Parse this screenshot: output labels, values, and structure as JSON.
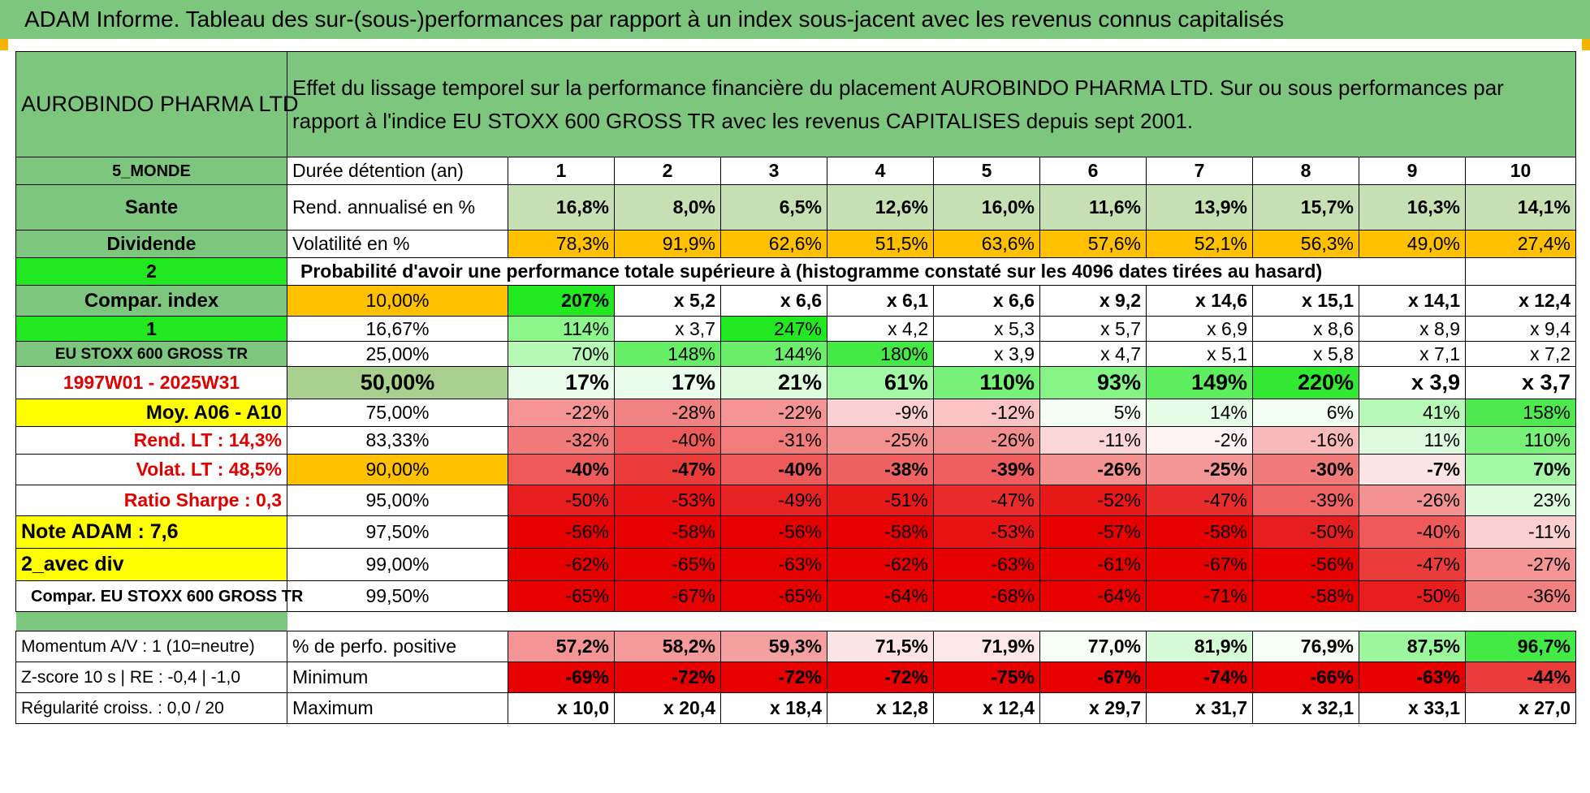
{
  "title": "ADAM Informe. Tableau des sur-(sous-)performances par rapport à un index sous-jacent avec les revenus connus capitalisés",
  "asset": "AUROBINDO PHARMA LTD",
  "description": "Effet du lissage temporel sur la performance financière du placement AUROBINDO PHARMA LTD. Sur ou sous performances par rapport à l'indice EU STOXX 600 GROSS TR avec les revenus CAPITALISES depuis sept 2001.",
  "left_labels": {
    "region": "5_MONDE",
    "sector": "Sante",
    "type": "Dividende",
    "val2": "2",
    "compar_index": "Compar. index",
    "val1": "1",
    "index_name": "EU STOXX 600 GROSS TR",
    "period": "1997W01 - 2025W31",
    "moy": "Moy. A06 - A10",
    "rend_lt": "Rend. LT :    14,3%",
    "volat_lt": "Volat. LT :    48,5%",
    "sharpe": "Ratio Sharpe :     0,3",
    "note": "Note ADAM : 7,6",
    "avec_div": "2_avec div",
    "compar_full": "Compar. EU STOXX 600 GROSS TR",
    "momentum": "Momentum A/V : 1 (10=neutre)",
    "zscore": "Z-score 10 s | RE : -0,4 | -1,0",
    "regularite": "Régularité croiss. : 0,0 / 20"
  },
  "header": {
    "duree_label": "Durée détention (an)",
    "years": [
      "1",
      "2",
      "3",
      "4",
      "5",
      "6",
      "7",
      "8",
      "9",
      "10"
    ]
  },
  "rend": {
    "label": "Rend. annualisé en %",
    "values": [
      "16,8%",
      "8,0%",
      "6,5%",
      "12,6%",
      "16,0%",
      "11,6%",
      "13,9%",
      "15,7%",
      "16,3%",
      "14,1%"
    ]
  },
  "vol": {
    "label": "Volatilité en %",
    "values": [
      "78,3%",
      "91,9%",
      "62,6%",
      "51,5%",
      "63,6%",
      "57,6%",
      "52,1%",
      "56,3%",
      "49,0%",
      "27,4%"
    ]
  },
  "prob_label": "Probabilité d'avoir une performance totale supérieure à (histogramme constaté sur les 4096 dates tirées au hasard)",
  "prob_rows": [
    {
      "pct": "10,00%",
      "values": [
        "207%",
        "x 5,2",
        "x 6,6",
        "x 6,1",
        "x 6,6",
        "x 9,2",
        "x 14,6",
        "x 15,1",
        "x 14,1",
        "x 12,4"
      ]
    },
    {
      "pct": "16,67%",
      "values": [
        "114%",
        "x 3,7",
        "247%",
        "x 4,2",
        "x 5,3",
        "x 5,7",
        "x 6,9",
        "x 8,6",
        "x 8,9",
        "x 9,4"
      ]
    },
    {
      "pct": "25,00%",
      "values": [
        "70%",
        "148%",
        "144%",
        "180%",
        "x 3,9",
        "x 4,7",
        "x 5,1",
        "x 5,8",
        "x 7,1",
        "x 7,2"
      ]
    },
    {
      "pct": "50,00%",
      "values": [
        "17%",
        "17%",
        "21%",
        "61%",
        "110%",
        "93%",
        "149%",
        "220%",
        "x 3,9",
        "x 3,7"
      ]
    },
    {
      "pct": "75,00%",
      "values": [
        "-22%",
        "-28%",
        "-22%",
        "-9%",
        "-12%",
        "5%",
        "14%",
        "6%",
        "41%",
        "158%"
      ]
    },
    {
      "pct": "83,33%",
      "values": [
        "-32%",
        "-40%",
        "-31%",
        "-25%",
        "-26%",
        "-11%",
        "-2%",
        "-16%",
        "11%",
        "110%"
      ]
    },
    {
      "pct": "90,00%",
      "values": [
        "-40%",
        "-47%",
        "-40%",
        "-38%",
        "-39%",
        "-26%",
        "-25%",
        "-30%",
        "-7%",
        "70%"
      ]
    },
    {
      "pct": "95,00%",
      "values": [
        "-50%",
        "-53%",
        "-49%",
        "-51%",
        "-47%",
        "-52%",
        "-47%",
        "-39%",
        "-26%",
        "23%"
      ]
    },
    {
      "pct": "97,50%",
      "values": [
        "-56%",
        "-58%",
        "-56%",
        "-58%",
        "-53%",
        "-57%",
        "-58%",
        "-50%",
        "-40%",
        "-11%"
      ]
    },
    {
      "pct": "99,00%",
      "values": [
        "-62%",
        "-65%",
        "-63%",
        "-62%",
        "-63%",
        "-61%",
        "-67%",
        "-56%",
        "-47%",
        "-27%"
      ]
    },
    {
      "pct": "99,50%",
      "values": [
        "-65%",
        "-67%",
        "-65%",
        "-64%",
        "-68%",
        "-64%",
        "-71%",
        "-58%",
        "-50%",
        "-36%"
      ]
    }
  ],
  "positive": {
    "label": "% de perfo. positive",
    "values": [
      "57,2%",
      "58,2%",
      "59,3%",
      "71,5%",
      "71,9%",
      "77,0%",
      "81,9%",
      "76,9%",
      "87,5%",
      "96,7%"
    ]
  },
  "minimum": {
    "label": "Minimum",
    "values": [
      "-69%",
      "-72%",
      "-72%",
      "-72%",
      "-75%",
      "-67%",
      "-74%",
      "-66%",
      "-63%",
      "-44%"
    ]
  },
  "maximum": {
    "label": "Maximum",
    "values": [
      "x 10,0",
      "x 20,4",
      "x 18,4",
      "x 12,8",
      "x 12,4",
      "x 29,7",
      "x 31,7",
      "x 32,1",
      "x 33,1",
      "x 27,0"
    ]
  },
  "colors": {
    "header_green": "#7dc67e",
    "rend_green": "#c6e0b4",
    "vol_orange": "#ffc000",
    "highlight_yellow": "#ffff00",
    "bright_green": "#22e822"
  },
  "cell_colors": {
    "prob": [
      [
        "#22e822",
        "#ffffff",
        "#ffffff",
        "#ffffff",
        "#ffffff",
        "#ffffff",
        "#ffffff",
        "#ffffff",
        "#ffffff",
        "#ffffff"
      ],
      [
        "#8cf58c",
        "#ffffff",
        "#22e822",
        "#ffffff",
        "#ffffff",
        "#ffffff",
        "#ffffff",
        "#ffffff",
        "#ffffff",
        "#ffffff"
      ],
      [
        "#b6f9b6",
        "#66ee66",
        "#6bef6b",
        "#44ea44",
        "#ffffff",
        "#ffffff",
        "#ffffff",
        "#ffffff",
        "#ffffff",
        "#ffffff"
      ],
      [
        "#eafdea",
        "#eafdea",
        "#defbde",
        "#a4f7a4",
        "#77f177",
        "#86f386",
        "#5eed5e",
        "#33e833",
        "#ffffff",
        "#ffffff"
      ],
      [
        "#f49494",
        "#f18282",
        "#f49494",
        "#fbd0d0",
        "#fac4c4",
        "#f4fef4",
        "#e6fce6",
        "#f2fef2",
        "#b8f8b8",
        "#4ee94e"
      ],
      [
        "#f17a7a",
        "#ee5a5a",
        "#f17c7c",
        "#f49292",
        "#f38e8e",
        "#fbd6d6",
        "#fff2f2",
        "#f9baba",
        "#dffbdf",
        "#77f177"
      ],
      [
        "#ee5a5a",
        "#eb3c3c",
        "#ee5a5a",
        "#ee6262",
        "#ee5e5e",
        "#f49292",
        "#f49696",
        "#f17a7a",
        "#fde4e4",
        "#a4f7a4"
      ],
      [
        "#e71e1e",
        "#e61414",
        "#e72222",
        "#e71a1a",
        "#e92d2d",
        "#e61818",
        "#e92d2d",
        "#ef6464",
        "#f49292",
        "#ddfbdd"
      ],
      [
        "#e60000",
        "#e60000",
        "#e60000",
        "#e60000",
        "#e61414",
        "#e60000",
        "#e60000",
        "#e71e1e",
        "#ee5a5a",
        "#fbd0d0"
      ],
      [
        "#e60000",
        "#e60000",
        "#e60000",
        "#e60000",
        "#e60000",
        "#e60000",
        "#e60000",
        "#e60000",
        "#eb3c3c",
        "#f49696"
      ],
      [
        "#e60000",
        "#e60000",
        "#e60000",
        "#e60000",
        "#e60000",
        "#e60000",
        "#e60000",
        "#e60000",
        "#e71e1e",
        "#f08080"
      ]
    ],
    "positive": [
      "#f49494",
      "#f59a9a",
      "#f5a0a0",
      "#fde4e4",
      "#fde6e6",
      "#f6fef6",
      "#d6fad6",
      "#f6fef6",
      "#9cf69c",
      "#44ea44"
    ],
    "minimum": [
      "#e60000",
      "#e60000",
      "#e60000",
      "#e60000",
      "#e60000",
      "#e60000",
      "#e60000",
      "#e60000",
      "#e60000",
      "#eb3c3c"
    ]
  }
}
